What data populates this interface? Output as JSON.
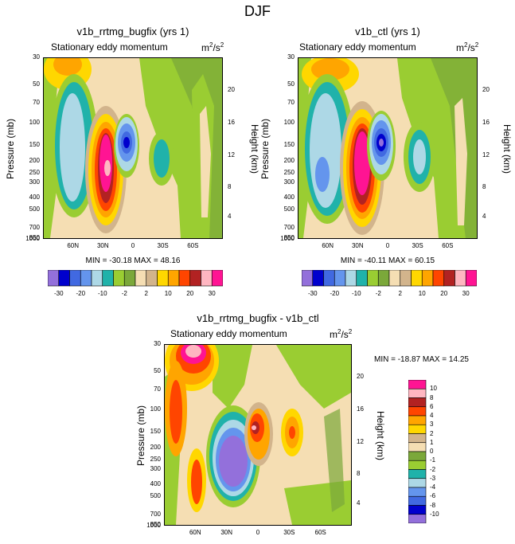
{
  "figure_title": "DJF",
  "chart_data": [
    {
      "type": "contour",
      "title": "v1b_rrtmg_bugfix (yrs 1)",
      "left_label": "Stationary eddy momentum",
      "units_base": "m",
      "units_exp1": "2",
      "units_mid": "/s",
      "units_exp2": "2",
      "ylabel": "Pressure (mb)",
      "ylabel_right": "Height (km)",
      "x_ticks": [
        "60N",
        "30N",
        "0",
        "30S",
        "60S"
      ],
      "y_ticks": [
        "30",
        "50",
        "70",
        "100",
        "150",
        "200",
        "250",
        "300",
        "400",
        "500",
        "700",
        "850",
        "1000"
      ],
      "height_ticks": [
        "20",
        "16",
        "12",
        "8",
        "4"
      ],
      "min_max": "MIN = -30.18  MAX =  48.16",
      "ylim": [
        1000,
        30
      ],
      "xlim": [
        "90N",
        "90S"
      ]
    },
    {
      "type": "contour",
      "title": "v1b_ctl (yrs 1)",
      "left_label": "Stationary eddy momentum",
      "units_base": "m",
      "units_exp1": "2",
      "units_mid": "/s",
      "units_exp2": "2",
      "ylabel": "Pressure (mb)",
      "ylabel_right": "Height (km)",
      "x_ticks": [
        "60N",
        "30N",
        "0",
        "30S",
        "60S"
      ],
      "y_ticks": [
        "30",
        "50",
        "70",
        "100",
        "150",
        "200",
        "250",
        "300",
        "400",
        "500",
        "700",
        "850",
        "1000"
      ],
      "height_ticks": [
        "20",
        "16",
        "12",
        "8",
        "4"
      ],
      "min_max": "MIN = -40.11  MAX =  60.15",
      "ylim": [
        1000,
        30
      ],
      "xlim": [
        "90N",
        "90S"
      ]
    },
    {
      "type": "contour",
      "title": "v1b_rrtmg_bugfix - v1b_ctl",
      "left_label": "Stationary eddy momentum",
      "units_base": "m",
      "units_exp1": "2",
      "units_mid": "/s",
      "units_exp2": "2",
      "ylabel": "Pressure (mb)",
      "ylabel_right": "Height (km)",
      "x_ticks": [
        "60N",
        "30N",
        "0",
        "30S",
        "60S"
      ],
      "y_ticks": [
        "30",
        "50",
        "70",
        "100",
        "150",
        "200",
        "250",
        "300",
        "400",
        "500",
        "700",
        "850",
        "1000"
      ],
      "height_ticks": [
        "20",
        "16",
        "12",
        "8",
        "4"
      ],
      "min_max": "MIN = -18.87  MAX =  14.25",
      "ylim": [
        1000,
        30
      ],
      "xlim": [
        "90N",
        "90S"
      ]
    }
  ],
  "colorbar_top": {
    "labels": [
      "-30",
      "-20",
      "-10",
      "-2",
      "2",
      "10",
      "20",
      "30"
    ],
    "colors": [
      "#9370DB",
      "#0000CD",
      "#4169E1",
      "#6495ED",
      "#ADD8E6",
      "#20B2AA",
      "#9ACD32",
      "#7BA83A",
      "#F5DEB3",
      "#D2B48C",
      "#FFD700",
      "#FFA500",
      "#FF4500",
      "#B22222",
      "#FFB6C1",
      "#FF1493"
    ]
  },
  "colorbar_diff": {
    "labels": [
      "10",
      "8",
      "6",
      "4",
      "3",
      "2",
      "1",
      "0",
      "-1",
      "-2",
      "-3",
      "-4",
      "-6",
      "-8",
      "-10"
    ],
    "colors": [
      "#FF1493",
      "#FFB6C1",
      "#B22222",
      "#FF4500",
      "#FFA500",
      "#FFD700",
      "#D2B48C",
      "#F5DEB3",
      "#7BA83A",
      "#9ACD32",
      "#20B2AA",
      "#ADD8E6",
      "#6495ED",
      "#4169E1",
      "#0000CD",
      "#9370DB"
    ]
  }
}
